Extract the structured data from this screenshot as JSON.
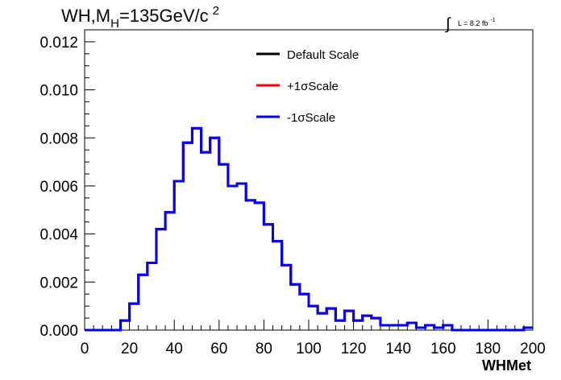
{
  "chart_data": {
    "type": "line",
    "title_main": "WH,M",
    "title_sub": "H",
    "title_rest": "=135GeV/c",
    "title_sup": "2",
    "lumi_integral": "∫",
    "lumi_text": "L = 8.2 fb",
    "lumi_sup": "-1",
    "xlabel": "WHMet",
    "ylabel": "",
    "xlim": [
      0,
      200
    ],
    "ylim": [
      0,
      0.0125
    ],
    "xticks": [
      0,
      20,
      40,
      60,
      80,
      100,
      120,
      140,
      160,
      180,
      200
    ],
    "xtick_labels": [
      "0",
      "20",
      "40",
      "60",
      "80",
      "100",
      "120",
      "140",
      "160",
      "180",
      "200"
    ],
    "yticks": [
      0,
      0.002,
      0.004,
      0.006,
      0.008,
      0.01,
      0.012
    ],
    "ytick_labels": [
      "0.000",
      "0.002",
      "0.004",
      "0.006",
      "0.008",
      "0.010",
      "0.012"
    ],
    "bin_edges": [
      0,
      4,
      8,
      12,
      16,
      20,
      24,
      28,
      32,
      36,
      40,
      44,
      48,
      52,
      56,
      60,
      64,
      68,
      72,
      76,
      80,
      84,
      88,
      92,
      96,
      100,
      104,
      108,
      112,
      116,
      120,
      124,
      128,
      132,
      136,
      140,
      144,
      148,
      152,
      156,
      160,
      164,
      168,
      172,
      176,
      180,
      184,
      188,
      192,
      196,
      200
    ],
    "legend_placement": "top-center",
    "grid": false,
    "series": [
      {
        "name": "Default Scale",
        "color": "#000000",
        "values": [
          0,
          0,
          0,
          0,
          0.0004,
          0.0011,
          0.0023,
          0.0028,
          0.0042,
          0.0049,
          0.0062,
          0.0078,
          0.0084,
          0.0074,
          0.008,
          0.0069,
          0.006,
          0.0061,
          0.0054,
          0.0053,
          0.0044,
          0.0037,
          0.0027,
          0.0019,
          0.0015,
          0.001,
          0.0007,
          0.0009,
          0.0004,
          0.0008,
          0.0004,
          0.0006,
          0.0005,
          0.0002,
          0.0002,
          0.0002,
          0.0003,
          0.0001,
          0.0002,
          0.0001,
          0.0002,
          0,
          0,
          0,
          0,
          0,
          0,
          0,
          0,
          0.0001
        ]
      },
      {
        "name": "+1σScale",
        "color": "#ff0000",
        "values": [
          0,
          0,
          0,
          0,
          0.0004,
          0.0011,
          0.0023,
          0.0028,
          0.0042,
          0.0049,
          0.0062,
          0.0078,
          0.0084,
          0.0074,
          0.008,
          0.0069,
          0.006,
          0.0061,
          0.0054,
          0.0053,
          0.0044,
          0.0037,
          0.0027,
          0.0019,
          0.0015,
          0.001,
          0.0007,
          0.0009,
          0.0004,
          0.0008,
          0.0004,
          0.0006,
          0.0005,
          0.0002,
          0.0002,
          0.0002,
          0.0003,
          0.0001,
          0.0002,
          0.0001,
          0.0002,
          0,
          0,
          0,
          0,
          0,
          0,
          0,
          0,
          0.0001
        ]
      },
      {
        "name": "-1σScale",
        "color": "#0000ff",
        "values": [
          0,
          0,
          0,
          0,
          0.0004,
          0.0011,
          0.0023,
          0.0028,
          0.0042,
          0.0049,
          0.0062,
          0.0078,
          0.0084,
          0.0074,
          0.008,
          0.0069,
          0.006,
          0.0061,
          0.0054,
          0.0053,
          0.0044,
          0.0037,
          0.0027,
          0.0019,
          0.0015,
          0.001,
          0.0007,
          0.0009,
          0.0004,
          0.0008,
          0.0004,
          0.0006,
          0.0005,
          0.0002,
          0.0002,
          0.0002,
          0.0003,
          0.0001,
          0.0002,
          0.0001,
          0.0002,
          0,
          0,
          0,
          0,
          0,
          0,
          0,
          0,
          0.0001
        ]
      }
    ]
  }
}
